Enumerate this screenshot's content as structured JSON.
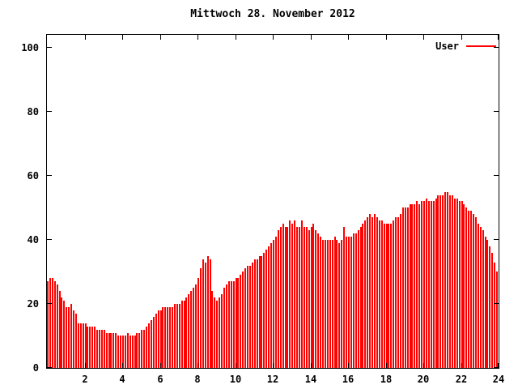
{
  "chart_data": {
    "type": "bar",
    "title": "Mittwoch 28. November 2012",
    "series": [
      {
        "name": "User",
        "color": "#ff0000"
      }
    ],
    "xlabel": "",
    "ylabel": "",
    "xlim": [
      0,
      24
    ],
    "ylim": [
      0,
      104
    ],
    "xticks": [
      2,
      4,
      6,
      8,
      10,
      12,
      14,
      16,
      18,
      20,
      22,
      24
    ],
    "xtick_labels": [
      "2",
      "4",
      "6",
      "8",
      "10",
      "12",
      "14",
      "16",
      "18",
      "20",
      "22",
      "24"
    ],
    "yticks": [
      0,
      20,
      40,
      60,
      80,
      100
    ],
    "ytick_labels": [
      "0",
      "20",
      "40",
      "60",
      "80",
      "100"
    ],
    "grid": false,
    "legend_position": "top-right-inside",
    "bar_color": "#ff0000",
    "frame_color": "#000000",
    "background_color": "#ffffff",
    "x_start_hour": 0,
    "x_interval_hours": 0.125,
    "values": [
      27,
      28,
      28,
      27,
      26,
      24,
      22,
      21,
      19,
      19,
      20,
      18,
      17,
      14,
      14,
      14,
      14,
      13,
      13,
      13,
      13,
      12,
      12,
      12,
      12,
      11,
      11,
      11,
      11,
      11,
      10,
      10,
      10,
      10,
      11,
      10,
      10,
      10,
      11,
      11,
      12,
      12,
      13,
      14,
      15,
      16,
      17,
      18,
      18,
      19,
      19,
      19,
      19,
      19,
      20,
      20,
      20,
      21,
      21,
      22,
      23,
      24,
      25,
      26,
      28,
      31,
      34,
      33,
      35,
      34,
      24,
      22,
      21,
      22,
      23,
      25,
      26,
      27,
      27,
      27,
      28,
      28,
      29,
      30,
      31,
      32,
      32,
      33,
      34,
      34,
      35,
      35,
      36,
      37,
      38,
      39,
      40,
      41,
      43,
      44,
      45,
      44,
      44,
      46,
      45,
      46,
      44,
      44,
      46,
      44,
      44,
      43,
      44,
      45,
      43,
      42,
      41,
      40,
      40,
      40,
      40,
      40,
      41,
      40,
      39,
      40,
      44,
      41,
      41,
      41,
      42,
      42,
      43,
      44,
      45,
      46,
      47,
      48,
      47,
      48,
      47,
      46,
      46,
      45,
      45,
      45,
      45,
      46,
      47,
      47,
      48,
      50,
      50,
      50,
      51,
      51,
      51,
      52,
      51,
      52,
      52,
      53,
      52,
      52,
      52,
      53,
      54,
      54,
      54,
      55,
      55,
      54,
      54,
      53,
      53,
      52,
      52,
      51,
      50,
      49,
      49,
      48,
      47,
      45,
      44,
      43,
      41,
      40,
      38,
      36,
      33,
      30
    ]
  }
}
